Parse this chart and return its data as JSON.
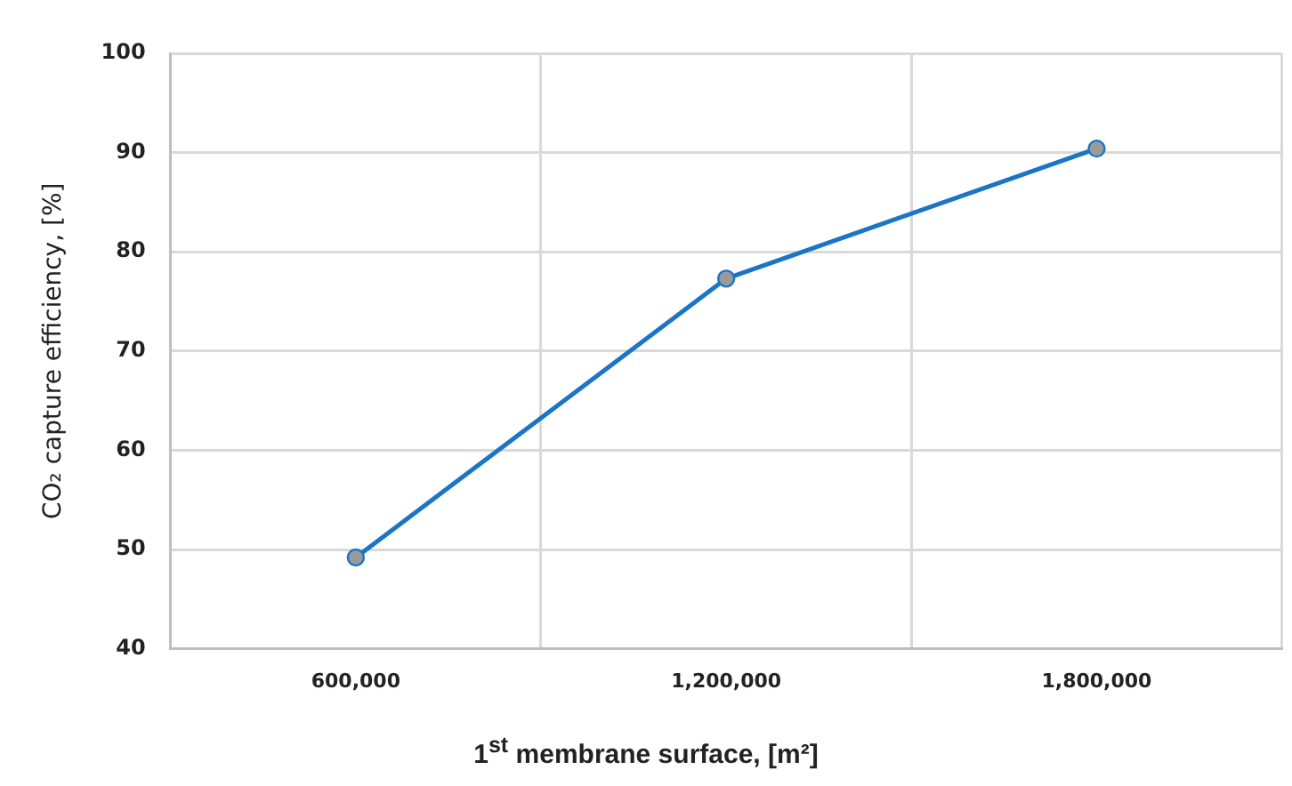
{
  "chart_data": {
    "type": "line",
    "xlabel": "1$^{st}$ membrane surface, [m²]",
    "ylabel": "CO₂ capture efficiency, [%]",
    "categories": [
      "600,000",
      "1,200,000",
      "1,800,000"
    ],
    "series": [
      {
        "color": "#1a75c7",
        "values": [
          49.2,
          77.3,
          90.4
        ]
      }
    ],
    "ylim": [
      40,
      100
    ],
    "yticks": [
      40,
      50,
      60,
      70,
      80,
      90,
      100
    ],
    "grid": true,
    "marker": "circle",
    "line_style": "solid",
    "legend": false
  }
}
